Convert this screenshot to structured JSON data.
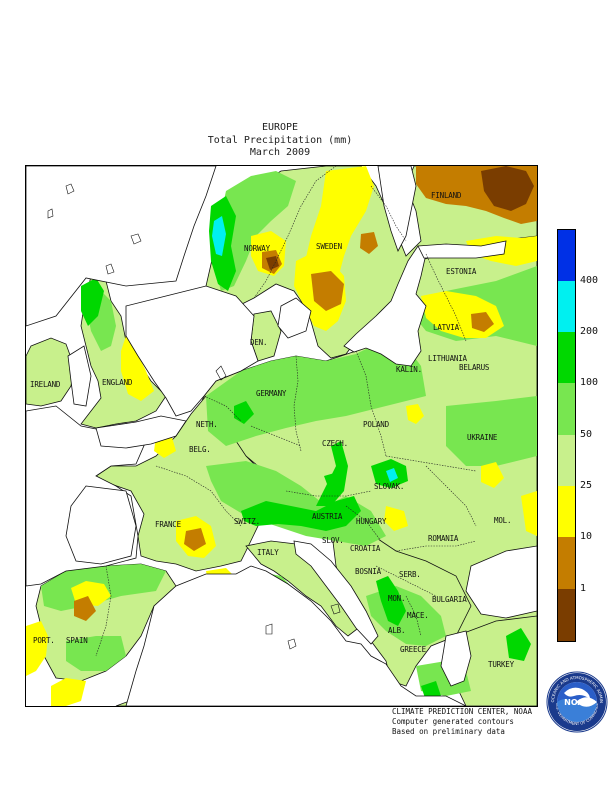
{
  "title": {
    "region": "EUROPE",
    "variable": "Total Precipitation (mm)",
    "period": "March 2009"
  },
  "colors": {
    "below_1": "#7a3d00",
    "r1_10": "#c47d00",
    "r10_25": "#ffff00",
    "r25_50": "#c8f08c",
    "r50_100": "#78e650",
    "r100_200": "#00d800",
    "r200_400": "#00f0f0",
    "above_400": "#0030e6",
    "water": "#ffffff"
  },
  "legend": {
    "thresholds": [
      "400",
      "200",
      "100",
      "50",
      "25",
      "10",
      "1"
    ]
  },
  "countries": [
    {
      "id": "finland",
      "label": "FINLAND"
    },
    {
      "id": "norway",
      "label": "NORWAY"
    },
    {
      "id": "sweden",
      "label": "SWEDEN"
    },
    {
      "id": "estonia",
      "label": "ESTONIA"
    },
    {
      "id": "latvia",
      "label": "LATVIA"
    },
    {
      "id": "den",
      "label": "DEN."
    },
    {
      "id": "lithuania",
      "label": "LITHUANIA"
    },
    {
      "id": "kalin",
      "label": "KALIN."
    },
    {
      "id": "ireland",
      "label": "IRELAND"
    },
    {
      "id": "england",
      "label": "ENGLAND"
    },
    {
      "id": "belarus",
      "label": "BELARUS"
    },
    {
      "id": "neth",
      "label": "NETH."
    },
    {
      "id": "germany",
      "label": "GERMANY"
    },
    {
      "id": "poland",
      "label": "POLAND"
    },
    {
      "id": "belg",
      "label": "BELG."
    },
    {
      "id": "czech",
      "label": "CZECH."
    },
    {
      "id": "ukraine",
      "label": "UKRAINE"
    },
    {
      "id": "slovak",
      "label": "SLOVAK."
    },
    {
      "id": "france",
      "label": "FRANCE"
    },
    {
      "id": "switz",
      "label": "SWITZ."
    },
    {
      "id": "austria",
      "label": "AUSTRIA"
    },
    {
      "id": "hungary",
      "label": "HUNGARY"
    },
    {
      "id": "mol",
      "label": "MOL."
    },
    {
      "id": "slov",
      "label": "SLOV."
    },
    {
      "id": "romania",
      "label": "ROMANIA"
    },
    {
      "id": "italy",
      "label": "ITALY"
    },
    {
      "id": "croatia",
      "label": "CROATIA"
    },
    {
      "id": "bosnia",
      "label": "BOSNIA"
    },
    {
      "id": "serb",
      "label": "SERB."
    },
    {
      "id": "bulgaria",
      "label": "BULGARIA"
    },
    {
      "id": "mon",
      "label": "MON."
    },
    {
      "id": "mace",
      "label": "MACE."
    },
    {
      "id": "port",
      "label": "PORT."
    },
    {
      "id": "spain",
      "label": "SPAIN"
    },
    {
      "id": "alb",
      "label": "ALB."
    },
    {
      "id": "greece",
      "label": "GREECE"
    },
    {
      "id": "turkey",
      "label": "TURKEY"
    }
  ],
  "credit": {
    "line1": "CLIMATE PREDICTION CENTER, NOAA",
    "line2": "Computer generated contours",
    "line3": "Based on preliminary data"
  },
  "logo": {
    "text": "NOAA",
    "ring_text": "NATIONAL OCEANIC AND ATMOSPHERIC ADMINISTRATION",
    "ring_text_bottom": "U.S. DEPARTMENT OF COMMERCE"
  }
}
